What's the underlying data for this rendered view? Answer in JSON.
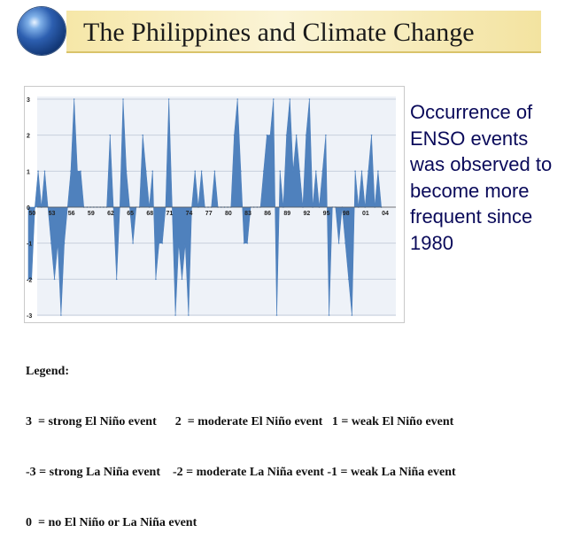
{
  "slide": {
    "title": "The Philippines and Climate Change",
    "side_text": "Occurrence of ENSO events was observed to become more frequent since 1980"
  },
  "legend": {
    "heading": "Legend:",
    "line1": "3  = strong El Niño event      2  = moderate El Niño event   1 = weak El Niño event",
    "line2": "-3 = strong La Niña event    -2 = moderate La Niña event -1 = weak La Niña event",
    "line3": "0  = no El Niño or La Niña event"
  },
  "chart_data": {
    "type": "area",
    "title": "",
    "xlabel": "",
    "ylabel": "",
    "ylim": [
      -3,
      3
    ],
    "xlim": [
      1950,
      2005
    ],
    "x_tick_labels": [
      "50",
      "53",
      "56",
      "59",
      "62",
      "65",
      "68",
      "71",
      "74",
      "77",
      "80",
      "83",
      "86",
      "89",
      "92",
      "95",
      "98",
      "01",
      "04"
    ],
    "y_tick_labels": [
      "3",
      "2",
      "1",
      "0",
      "-1",
      "-2",
      "-3"
    ],
    "grid": true,
    "fill_color": "#4f81bd",
    "series": [
      {
        "name": "",
        "x": [
          1950,
          1950.5,
          1951,
          1951.5,
          1952,
          1952.5,
          1953,
          1953.5,
          1954,
          1954.5,
          1955,
          1955.5,
          1956,
          1956.5,
          1957,
          1957.5,
          1958,
          1958.5,
          1959,
          1959.5,
          1960,
          1960.5,
          1961,
          1961.5,
          1962,
          1962.5,
          1963,
          1963.5,
          1964,
          1964.5,
          1965,
          1965.5,
          1966,
          1966.5,
          1967,
          1967.5,
          1968,
          1968.5,
          1969,
          1969.5,
          1970,
          1970.5,
          1971,
          1971.5,
          1972,
          1972.5,
          1973,
          1973.5,
          1974,
          1974.5,
          1975,
          1975.5,
          1976,
          1976.5,
          1977,
          1977.5,
          1978,
          1978.5,
          1979,
          1979.5,
          1980,
          1980.5,
          1981,
          1981.5,
          1982,
          1982.5,
          1983,
          1983.5,
          1984,
          1984.5,
          1985,
          1985.5,
          1986,
          1986.5,
          1987,
          1987.5,
          1988,
          1988.5,
          1989,
          1989.5,
          1990,
          1990.5,
          1991,
          1991.5,
          1992,
          1992.5,
          1993,
          1993.5,
          1994,
          1994.5,
          1995,
          1995.5,
          1996,
          1996.5,
          1997,
          1997.5,
          1998,
          1998.5,
          1999,
          1999.5,
          2000,
          2000.5,
          2001,
          2001.5,
          2002,
          2002.5,
          2003,
          2003.5,
          2004
        ],
        "values": [
          -2,
          -2,
          0,
          1,
          0,
          1,
          0,
          -1,
          -2,
          -1,
          -3,
          -1,
          0,
          1,
          3,
          1,
          1,
          0,
          0,
          0,
          0,
          0,
          0,
          0,
          0,
          2,
          0,
          -2,
          0,
          3,
          1,
          0,
          -1,
          0,
          0,
          2,
          1,
          0,
          1,
          -2,
          -1,
          -1,
          0,
          3,
          0,
          -3,
          -1,
          -2,
          -1,
          -3,
          0,
          1,
          0,
          1,
          0,
          0,
          0,
          1,
          0,
          0,
          0,
          0,
          0,
          2,
          3,
          1,
          -1,
          -1,
          0,
          0,
          0,
          0,
          1,
          2,
          2,
          3,
          -3,
          1,
          0,
          2,
          3,
          1,
          2,
          1,
          0,
          2,
          3,
          0,
          1,
          0,
          1,
          2,
          -3,
          0,
          0,
          -1,
          0,
          -1,
          -2,
          -3,
          1,
          0,
          1,
          0,
          1,
          2,
          0,
          1,
          0
        ]
      }
    ]
  }
}
